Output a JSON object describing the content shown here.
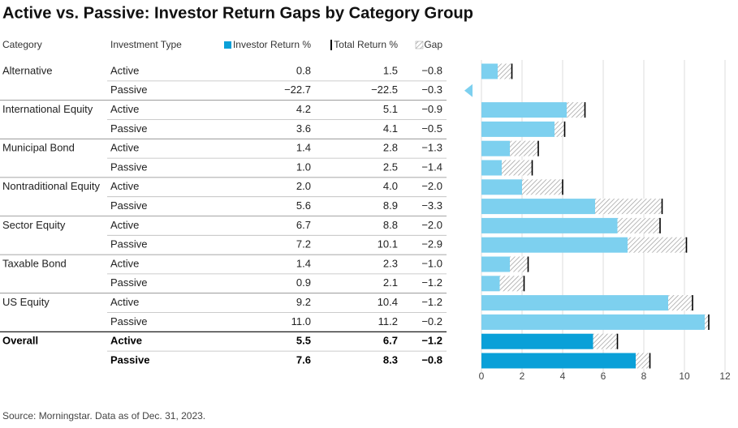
{
  "chart_data": {
    "type": "table-bar",
    "title": "Active vs. Passive: Investor Return Gaps by Category Group",
    "category_header": "Category",
    "type_header": "Investment Type",
    "categories": [
      "Alternative",
      null,
      "International Equity",
      null,
      "Municipal Bond",
      null,
      "Nontraditional Equity",
      null,
      "Sector Equity",
      null,
      "Taxable Bond",
      null,
      "US Equity",
      null,
      "Overall",
      null
    ],
    "investment_types": [
      "Active",
      "Passive",
      "Active",
      "Passive",
      "Active",
      "Passive",
      "Active",
      "Passive",
      "Active",
      "Passive",
      "Active",
      "Passive",
      "Active",
      "Passive",
      "Active",
      "Passive"
    ],
    "series": [
      {
        "name": "Investor Return %",
        "color": "#7dd0ef",
        "highlight_color": "#0aa0d8",
        "values": [
          0.8,
          -22.7,
          4.2,
          3.6,
          1.4,
          1.0,
          2.0,
          5.6,
          6.7,
          7.2,
          1.4,
          0.9,
          9.2,
          11.0,
          5.5,
          7.6
        ],
        "value_labels": [
          "0.8",
          "−22.7",
          "4.2",
          "3.6",
          "1.4",
          "1.0",
          "2.0",
          "5.6",
          "6.7",
          "7.2",
          "1.4",
          "0.9",
          "9.2",
          "11.0",
          "5.5",
          "7.6"
        ]
      },
      {
        "name": "Total Return %",
        "color": "#000000",
        "values": [
          1.5,
          -22.5,
          5.1,
          4.1,
          2.8,
          2.5,
          4.0,
          8.9,
          8.8,
          10.1,
          2.3,
          2.1,
          10.4,
          11.2,
          6.7,
          8.3
        ],
        "value_labels": [
          "1.5",
          "−22.5",
          "5.1",
          "4.1",
          "2.8",
          "2.5",
          "4.0",
          "8.9",
          "8.8",
          "10.1",
          "2.3",
          "2.1",
          "10.4",
          "11.2",
          "6.7",
          "8.3"
        ]
      },
      {
        "name": "Gap",
        "color": "#999999",
        "values": [
          -0.8,
          -0.3,
          -0.9,
          -0.5,
          -1.3,
          -1.4,
          -2.0,
          -3.3,
          -2.0,
          -2.9,
          -1.0,
          -1.2,
          -1.2,
          -0.2,
          -1.2,
          -0.8
        ],
        "value_labels": [
          "−0.8",
          "−0.3",
          "−0.9",
          "−0.5",
          "−1.3",
          "−1.4",
          "−2.0",
          "−3.3",
          "−2.0",
          "−2.9",
          "−1.0",
          "−1.2",
          "−1.2",
          "−0.2",
          "−1.2",
          "−0.8"
        ]
      }
    ],
    "xlim": [
      0,
      12
    ],
    "xticks": [
      0,
      2,
      4,
      6,
      8,
      10,
      12
    ],
    "grid": true,
    "source": "Source: Morningstar. Data as of Dec. 31, 2023."
  }
}
